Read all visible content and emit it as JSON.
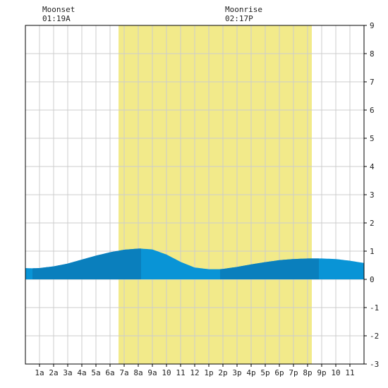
{
  "moon": {
    "moonset_label": "Moonset",
    "moonset_time": "01:19A",
    "moonrise_label": "Moonrise",
    "moonrise_time": "02:17P"
  },
  "chart_data": {
    "type": "area",
    "title": "",
    "xlabel": "",
    "ylabel": "",
    "xlim": [
      0,
      24
    ],
    "ylim": [
      -3,
      9
    ],
    "grid": true,
    "x_tick_labels": [
      "1a",
      "2a",
      "3a",
      "4a",
      "5a",
      "6a",
      "7a",
      "8a",
      "9a",
      "10",
      "11",
      "12",
      "1p",
      "2p",
      "3p",
      "4p",
      "5p",
      "6p",
      "7p",
      "8p",
      "9p",
      "10",
      "11"
    ],
    "y_ticks": [
      -3,
      -2,
      -1,
      0,
      1,
      2,
      3,
      4,
      5,
      6,
      7,
      8,
      9
    ],
    "daylight": {
      "start_hour": 6.6,
      "end_hour": 20.3
    },
    "moonset_hour": 1.32,
    "moonrise_hour": 14.28,
    "colors": {
      "daylight": "#f2ea8a",
      "tide_dark": "#0a7fbd",
      "tide_light": "#0994d6",
      "grid": "#cccccc",
      "frame": "#000000"
    },
    "series": [
      {
        "x": [
          0,
          0.5,
          1,
          2,
          3,
          4,
          5,
          6,
          7,
          8,
          8.2,
          9,
          10,
          11,
          12,
          13,
          13.8,
          14,
          15,
          16,
          17,
          18,
          19,
          20,
          20.8,
          21,
          22,
          23,
          24
        ],
        "y": [
          0.4,
          0.39,
          0.4,
          0.46,
          0.56,
          0.7,
          0.84,
          0.96,
          1.05,
          1.09,
          1.09,
          1.06,
          0.88,
          0.62,
          0.42,
          0.36,
          0.36,
          0.37,
          0.44,
          0.53,
          0.61,
          0.68,
          0.72,
          0.74,
          0.74,
          0.74,
          0.72,
          0.66,
          0.58
        ]
      }
    ],
    "tide_bands": [
      {
        "from": 0.5,
        "to": 8.2,
        "shade": "dark"
      },
      {
        "from": 8.2,
        "to": 13.8,
        "shade": "light"
      },
      {
        "from": 13.8,
        "to": 20.8,
        "shade": "dark"
      },
      {
        "from": 20.8,
        "to": 24,
        "shade": "light"
      }
    ]
  }
}
